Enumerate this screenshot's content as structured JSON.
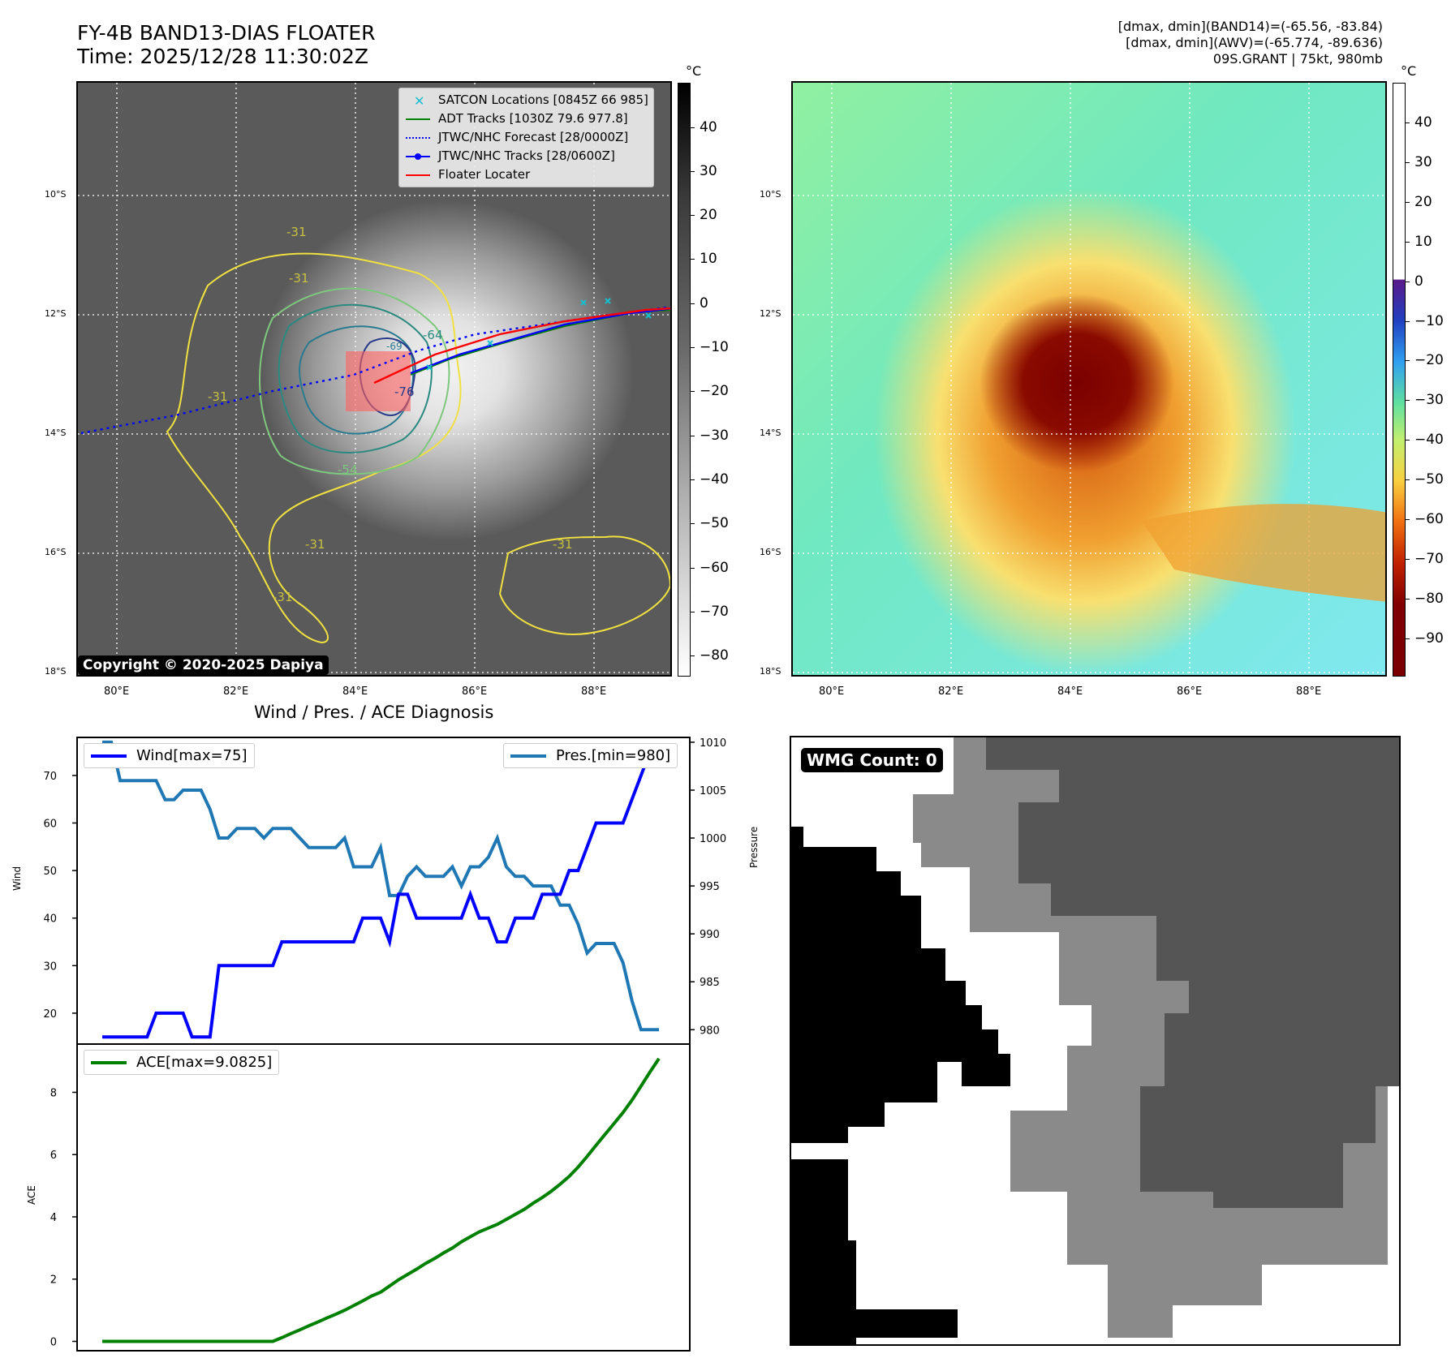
{
  "header": {
    "title_line1": "FY-4B BAND13-DIAS FLOATER",
    "title_line2": "Time: 2025/12/28 11:30:02Z",
    "info_line1": "[dmax, dmin](BAND14)=(-65.56, -83.84)",
    "info_line2": "[dmax, dmin](AWV)=(-65.774, -89.636)",
    "info_line3": "09S.GRANT | 75kt, 980mb"
  },
  "ir_panel": {
    "colorbar_unit": "°C",
    "colorbar_ticks": [
      "40",
      "30",
      "20",
      "10",
      "0",
      "−10",
      "−20",
      "−30",
      "−40",
      "−50",
      "−60",
      "−70",
      "−80"
    ],
    "lat_labels": [
      "10°S",
      "12°S",
      "14°S",
      "16°S",
      "18°S"
    ],
    "lon_labels": [
      "80°E",
      "82°E",
      "84°E",
      "86°E",
      "88°E"
    ],
    "legend": [
      {
        "label": "SATCON Locations [0845Z 66 985]",
        "color": "#17becf",
        "symbol": "x"
      },
      {
        "label": "ADT Tracks [1030Z 79.6 977.8]",
        "color": "#008000",
        "symbol": "line"
      },
      {
        "label": "JTWC/NHC Forecast [28/0000Z]",
        "color": "#0000ff",
        "symbol": "dotted"
      },
      {
        "label": "JTWC/NHC Tracks [28/0600Z]",
        "color": "#0000ff",
        "symbol": "line-dot"
      },
      {
        "label": "Floater Locater",
        "color": "#ff0000",
        "symbol": "line"
      }
    ],
    "contour_labels": [
      "-31",
      "-31",
      "-31",
      "-31",
      "-31",
      "-54",
      "-64",
      "-69",
      "-76",
      "-31"
    ],
    "copyright": "Copyright © 2020-2025 Dapiya"
  },
  "awv_panel": {
    "colorbar_unit": "°C",
    "colorbar_ticks": [
      "40",
      "30",
      "20",
      "10",
      "0",
      "−10",
      "−20",
      "−30",
      "−40",
      "−50",
      "−60",
      "−70",
      "−80",
      "−90"
    ],
    "lat_labels": [
      "10°S",
      "12°S",
      "14°S",
      "16°S",
      "18°S"
    ],
    "lon_labels": [
      "80°E",
      "82°E",
      "84°E",
      "86°E",
      "88°E"
    ]
  },
  "diagnosis": {
    "title": "Wind / Pres. / ACE Diagnosis",
    "wind_legend": "Wind[max=75]",
    "pres_legend": "Pres.[min=980]",
    "ace_legend": "ACE[max=9.0825]",
    "wind_axis_label": "Wind",
    "pres_axis_label": "Pressure",
    "ace_axis_label": "ACE",
    "colors": {
      "wind": "#0000ff",
      "pres": "#1f77b4",
      "ace": "#008000"
    }
  },
  "wmg_panel": {
    "badge": "WMG Count: 0"
  },
  "chart_data": [
    {
      "type": "line",
      "title": "Wind / Pres. / ACE Diagnosis",
      "ylabel": "Wind",
      "y2label": "Pressure",
      "ylim": [
        13.5,
        78
      ],
      "y2lim": [
        978.5,
        1010.5
      ],
      "yticks": [
        20,
        30,
        40,
        50,
        60,
        70
      ],
      "y2ticks": [
        980,
        985,
        990,
        995,
        1000,
        1005,
        1010
      ],
      "series": [
        {
          "name": "Wind[max=75]",
          "axis": "left",
          "values": [
            15,
            15,
            15,
            15,
            15,
            15,
            20,
            20,
            20,
            20,
            15,
            15,
            15,
            30,
            30,
            30,
            30,
            30,
            30,
            30,
            35,
            35,
            35,
            35,
            35,
            35,
            35,
            35,
            35,
            40,
            40,
            40,
            35,
            45,
            45,
            40,
            40,
            40,
            40,
            40,
            40,
            45,
            40,
            40,
            35,
            35,
            40,
            40,
            40,
            45,
            45,
            45,
            50,
            50,
            55,
            60,
            60,
            60,
            60,
            65,
            70,
            75,
            75
          ]
        },
        {
          "name": "Pres.[min=980]",
          "axis": "right",
          "values": [
            1010,
            1010,
            1006,
            1006,
            1006,
            1006,
            1006,
            1004,
            1004,
            1005,
            1005,
            1005,
            1003,
            1000,
            1000,
            1001,
            1001,
            1001,
            1000,
            1001,
            1001,
            1001,
            1000,
            999,
            999,
            999,
            999,
            1000,
            997,
            997,
            997,
            999,
            994,
            994,
            996,
            997,
            996,
            996,
            996,
            997,
            995,
            997,
            997,
            998,
            1000,
            997,
            996,
            996,
            995,
            995,
            995,
            993,
            993,
            991,
            988,
            989,
            989,
            989,
            987,
            983,
            980,
            980,
            980
          ]
        }
      ]
    },
    {
      "type": "line",
      "ylabel": "ACE",
      "ylim": [
        -0.3,
        9.55
      ],
      "yticks": [
        0,
        2,
        4,
        6,
        8
      ],
      "series": [
        {
          "name": "ACE[max=9.0825]",
          "values": [
            0,
            0,
            0,
            0,
            0,
            0,
            0,
            0,
            0,
            0,
            0,
            0,
            0,
            0,
            0,
            0,
            0,
            0,
            0,
            0,
            0.12,
            0.25,
            0.37,
            0.5,
            0.62,
            0.75,
            0.87,
            1.0,
            1.15,
            1.3,
            1.46,
            1.58,
            1.78,
            1.98,
            2.15,
            2.32,
            2.5,
            2.66,
            2.84,
            3.0,
            3.2,
            3.36,
            3.52,
            3.64,
            3.76,
            3.92,
            4.08,
            4.24,
            4.44,
            4.62,
            4.82,
            5.05,
            5.3,
            5.6,
            5.94,
            6.3,
            6.65,
            7.0,
            7.35,
            7.75,
            8.2,
            8.65,
            9.0825
          ]
        }
      ]
    }
  ]
}
